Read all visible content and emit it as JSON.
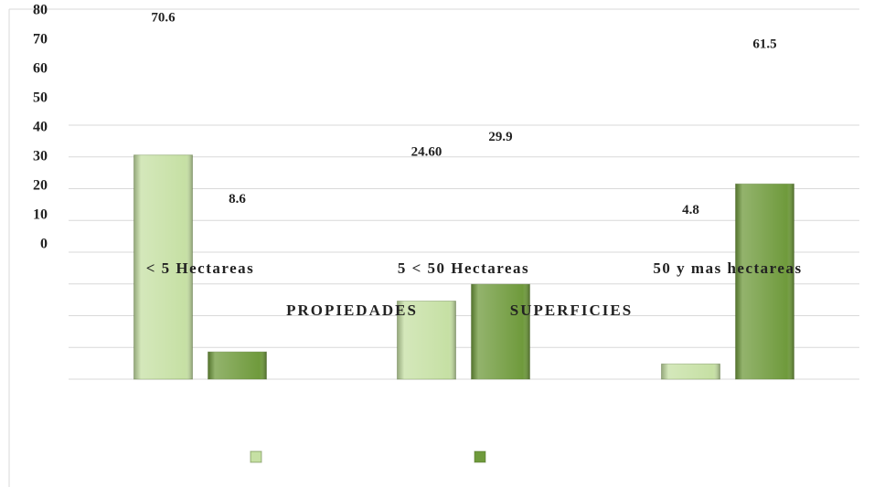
{
  "chart_data": {
    "type": "bar",
    "categories": [
      "< 5 Hectareas",
      "5 < 50 Hectareas",
      "50 y mas hectareas"
    ],
    "series": [
      {
        "name": "PROPIEDADES",
        "color": "#c6e0a4",
        "values": [
          70.6,
          24.6,
          4.8
        ],
        "value_labels": [
          "70.6",
          "24.60",
          "4.8"
        ]
      },
      {
        "name": "SUPERFICIES",
        "color": "#6f9a3c",
        "values": [
          8.6,
          29.9,
          61.5
        ],
        "value_labels": [
          "8.6",
          "29.9",
          "61.5"
        ]
      }
    ],
    "ylim": [
      0,
      80
    ],
    "yticks": [
      0,
      10,
      20,
      30,
      40,
      50,
      60,
      70,
      80
    ],
    "grid": true
  }
}
